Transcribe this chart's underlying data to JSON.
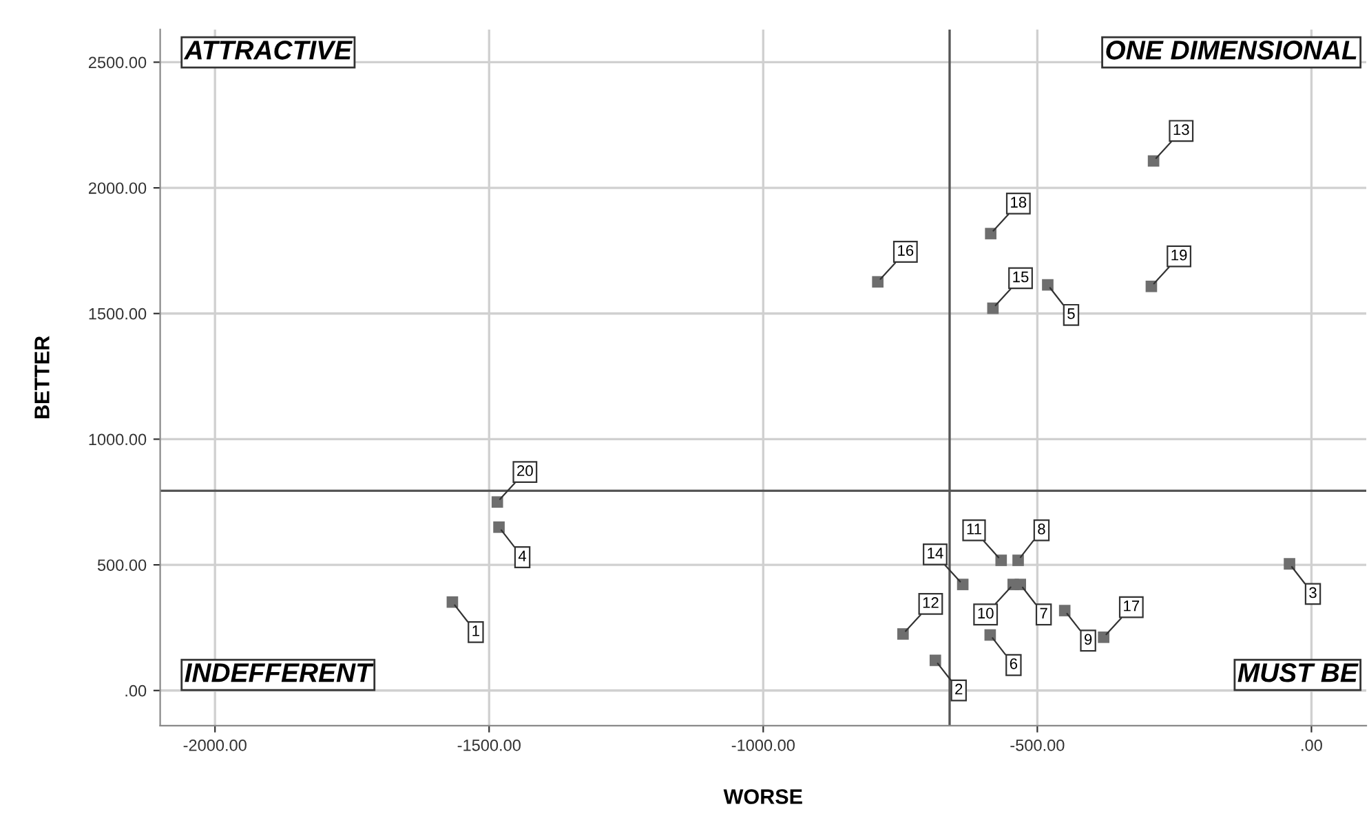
{
  "chart_data": {
    "type": "scatter",
    "xlabel": "WORSE",
    "ylabel": "BETTER",
    "x": [
      -288,
      -585,
      -791,
      -581,
      -481,
      -292,
      -1485,
      -1482,
      -1567,
      -566,
      -535,
      -636,
      -544,
      -531,
      -745,
      -686,
      -586,
      -450,
      -379,
      -40
    ],
    "series": [
      {
        "color": "#6e6e6e",
        "values": [
          2107,
          1818,
          1626,
          1521,
          1614,
          1608,
          750,
          650,
          352,
          518,
          518,
          422,
          422,
          422,
          225,
          120,
          221,
          318,
          212,
          504
        ]
      }
    ],
    "marker": "square",
    "xlim": [
      -2100,
      100
    ],
    "ylim": [
      -140,
      2630
    ],
    "xticks": [
      {
        "value": -2000,
        "label": "-2000.00"
      },
      {
        "value": -1500,
        "label": "-1500.00"
      },
      {
        "value": -1000,
        "label": "-1000.00"
      },
      {
        "value": -500,
        "label": "-500.00"
      },
      {
        "value": 0,
        "label": ".00"
      }
    ],
    "yticks": [
      {
        "value": 0,
        "label": ".00"
      },
      {
        "value": 500,
        "label": "500.00"
      },
      {
        "value": 1000,
        "label": "1000.00"
      },
      {
        "value": 1500,
        "label": "1500.00"
      },
      {
        "value": 2000,
        "label": "2000.00"
      },
      {
        "value": 2500,
        "label": "2500.00"
      }
    ],
    "grid": true,
    "ref_lines": [
      {
        "axis": "x",
        "value": -660,
        "color": "#555555"
      },
      {
        "axis": "y",
        "value": 795,
        "color": "#555555"
      }
    ],
    "annotations": [
      {
        "text": "13",
        "x": -288,
        "y": 2107
      },
      {
        "text": "18",
        "x": -585,
        "y": 1818
      },
      {
        "text": "16",
        "x": -791,
        "y": 1626
      },
      {
        "text": "15",
        "x": -581,
        "y": 1521
      },
      {
        "text": "5",
        "x": -481,
        "y": 1614
      },
      {
        "text": "19",
        "x": -292,
        "y": 1608
      },
      {
        "text": "20",
        "x": -1485,
        "y": 750
      },
      {
        "text": "4",
        "x": -1482,
        "y": 650
      },
      {
        "text": "1",
        "x": -1567,
        "y": 352
      },
      {
        "text": "11",
        "x": -566,
        "y": 518
      },
      {
        "text": "8",
        "x": -535,
        "y": 518
      },
      {
        "text": "14",
        "x": -636,
        "y": 422
      },
      {
        "text": "10",
        "x": -544,
        "y": 422
      },
      {
        "text": "7",
        "x": -531,
        "y": 422
      },
      {
        "text": "12",
        "x": -745,
        "y": 225
      },
      {
        "text": "2",
        "x": -686,
        "y": 120
      },
      {
        "text": "6",
        "x": -586,
        "y": 221
      },
      {
        "text": "9",
        "x": -450,
        "y": 318
      },
      {
        "text": "17",
        "x": -379,
        "y": 212
      },
      {
        "text": "3",
        "x": -40,
        "y": 504
      },
      "ATTRACTIVE",
      "ONE DIMENSIONAL",
      "INDEFFERENT",
      "MUST BE"
    ]
  }
}
